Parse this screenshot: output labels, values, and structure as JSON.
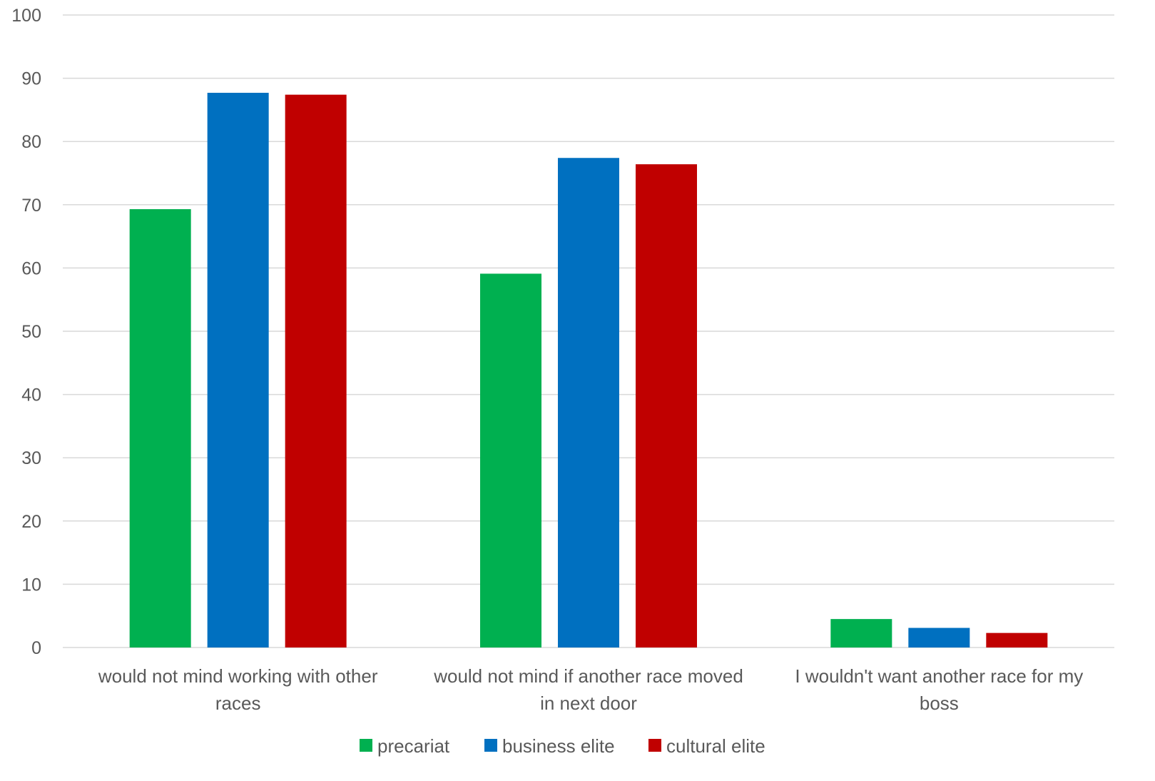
{
  "chart_data": {
    "type": "bar",
    "categories": [
      [
        "would not mind working with other",
        "races"
      ],
      [
        "would not mind if another race moved",
        "in next door"
      ],
      [
        "I wouldn't want another race for my",
        "boss"
      ]
    ],
    "series": [
      {
        "name": "precariat",
        "color": "#00b050",
        "values": [
          69.3,
          59.1,
          4.5
        ]
      },
      {
        "name": "business elite",
        "color": "#0070c0",
        "values": [
          87.7,
          77.4,
          3.1
        ]
      },
      {
        "name": "cultural elite",
        "color": "#c00000",
        "values": [
          87.4,
          76.4,
          2.3
        ]
      }
    ],
    "ylim": [
      0,
      100
    ],
    "yticks": [
      0,
      10,
      20,
      30,
      40,
      50,
      60,
      70,
      80,
      90,
      100
    ],
    "grid": true,
    "legend_position": "bottom",
    "title": "",
    "xlabel": "",
    "ylabel": ""
  }
}
